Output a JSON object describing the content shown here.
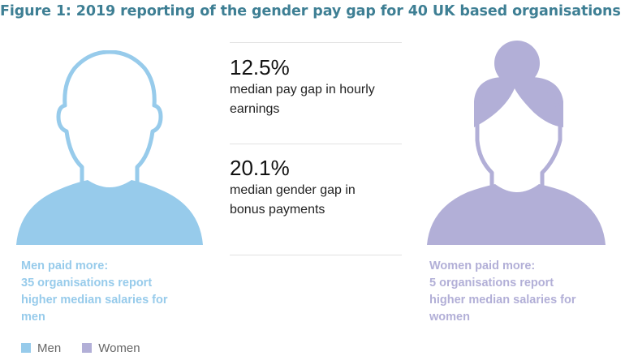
{
  "title": "Figure 1: 2019 reporting of the gender pay gap for 40 UK based organisations",
  "colors": {
    "title": "#3e7f94",
    "men": "#97cbeb",
    "women": "#b2afd7"
  },
  "stats": [
    {
      "value": "12.5%",
      "label_line1": "median pay gap in hourly",
      "label_line2": "earnings"
    },
    {
      "value": "20.1%",
      "label_line1": "median gender gap in",
      "label_line2": "bonus payments"
    }
  ],
  "men_caption": {
    "line1": "Men paid more:",
    "line2": "35 organisations report",
    "line3": "higher median salaries for",
    "line4": "men"
  },
  "women_caption": {
    "line1": "Women paid more:",
    "line2": "5 organisations report",
    "line3": "higher median salaries for",
    "line4": "women"
  },
  "legend": {
    "men": "Men",
    "women": "Women"
  },
  "icons": {
    "men": "man-silhouette-icon",
    "women": "woman-silhouette-icon"
  }
}
